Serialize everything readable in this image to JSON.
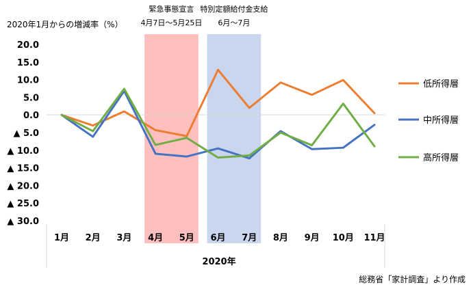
{
  "chart_data": {
    "type": "line",
    "ylabel": "2020年1月からの増減率（%）",
    "xgroup_label": "2020年",
    "source": "総務省「家計調査」より作成",
    "categories": [
      "1月",
      "2月",
      "3月",
      "4月",
      "5月",
      "6月",
      "7月",
      "8月",
      "9月",
      "10月",
      "11月"
    ],
    "ylim": [
      -30,
      20
    ],
    "yticks": [
      {
        "value": 20,
        "label": "20.0"
      },
      {
        "value": 15,
        "label": "15.0"
      },
      {
        "value": 10,
        "label": "10.0"
      },
      {
        "value": 5,
        "label": "5.0"
      },
      {
        "value": 0,
        "label": "0.0"
      },
      {
        "value": -5,
        "label": "▲ 5.0"
      },
      {
        "value": -10,
        "label": "▲ 10.0"
      },
      {
        "value": -15,
        "label": "▲ 15.0"
      },
      {
        "value": -20,
        "label": "▲ 20.0"
      },
      {
        "value": -25,
        "label": "▲ 25.0"
      },
      {
        "value": -30,
        "label": "▲ 30.0"
      }
    ],
    "series": [
      {
        "name": "低所得層",
        "color": "#ed7d31",
        "values": [
          0,
          -3.0,
          1.0,
          -4.3,
          -6.0,
          12.8,
          2.0,
          9.2,
          5.7,
          9.9,
          0.5
        ]
      },
      {
        "name": "中所得層",
        "color": "#4472c4",
        "values": [
          0,
          -6.2,
          6.8,
          -11.0,
          -11.8,
          -9.5,
          -12.3,
          -4.6,
          -9.7,
          -9.3,
          -2.8
        ]
      },
      {
        "name": "高所得層",
        "color": "#70ad47",
        "values": [
          0,
          -4.6,
          7.4,
          -8.5,
          -6.5,
          -12.1,
          -11.5,
          -5.0,
          -8.6,
          3.2,
          -8.9
        ]
      }
    ],
    "annotations": [
      {
        "title": "緊急事態宣言",
        "subtitle": "4月7日～5月25日",
        "from": "4月",
        "to": "5月",
        "color": "#ffbfbf"
      },
      {
        "title": "特別定額給付金支給",
        "subtitle": "6月～7月",
        "from": "6月",
        "to": "7月",
        "color": "#c9d6ee"
      }
    ],
    "grid": false,
    "legend_position": "right"
  }
}
